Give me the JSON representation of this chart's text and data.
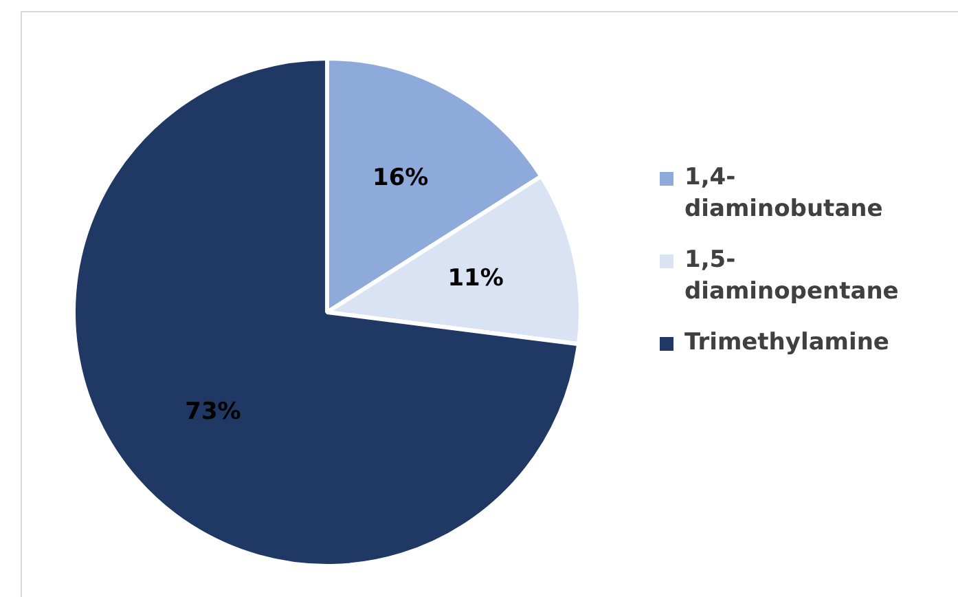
{
  "chart_data": {
    "type": "pie",
    "categories": [
      "1,4-diaminobutane",
      "1,5-diaminopentane",
      "Trimethylamine"
    ],
    "values": [
      16,
      11,
      73
    ],
    "colors": [
      "#8eaadb",
      "#dae3f3",
      "#203864"
    ],
    "value_labels": [
      "16%",
      "11%",
      "73%"
    ],
    "legend": "right"
  }
}
